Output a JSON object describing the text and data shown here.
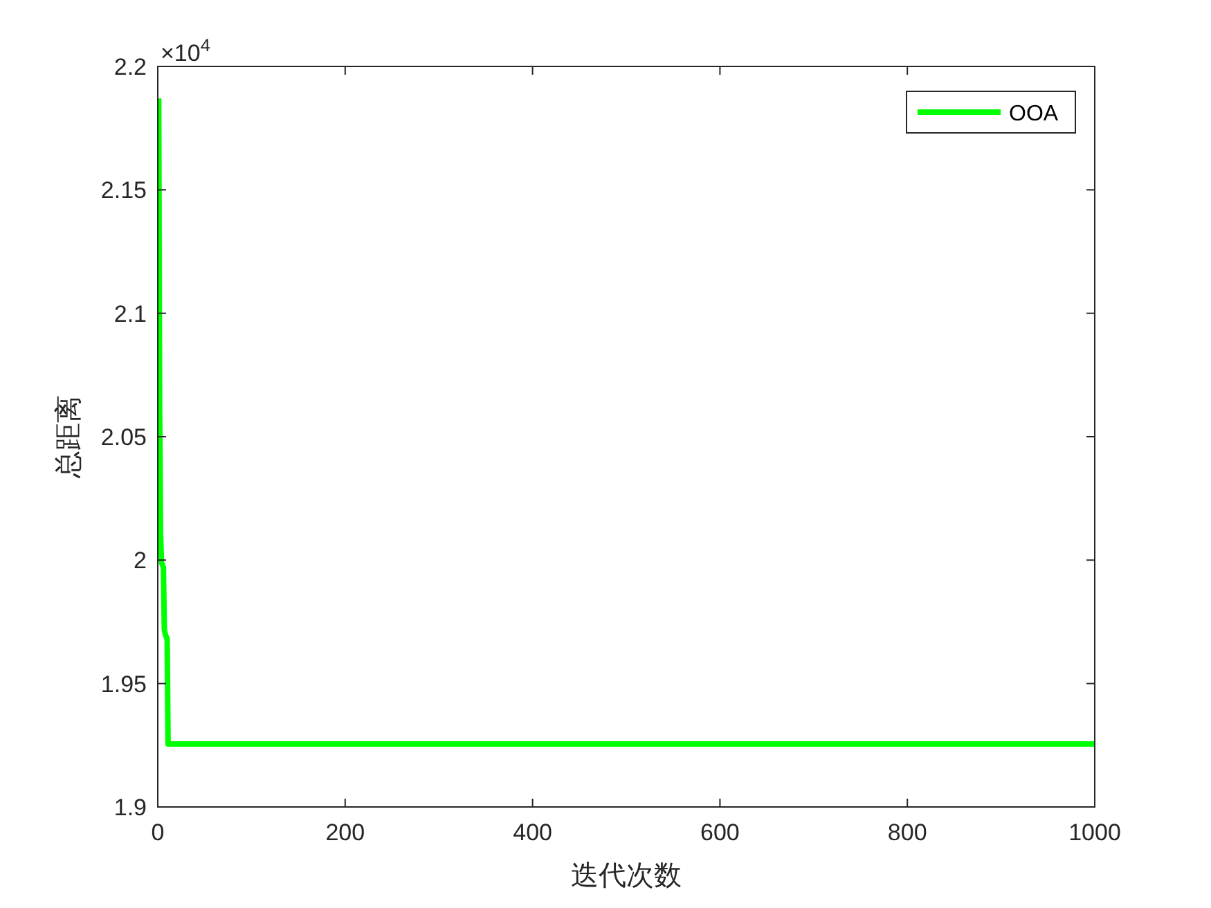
{
  "chart_data": {
    "type": "line",
    "xlabel": "迭代次数",
    "ylabel": "总距离",
    "annotations": [
      "×10$^{4}$"
    ],
    "x": [
      1,
      2,
      3,
      4,
      6,
      7,
      8,
      10,
      11,
      1000
    ],
    "series": [
      {
        "name": "OOA",
        "color": "#00ff00",
        "values": [
          2.187,
          2.06,
          2.01,
          1.999,
          1.997,
          1.972,
          1.97,
          1.968,
          1.9255,
          1.9255
        ]
      }
    ],
    "xlim": [
      0,
      1000
    ],
    "xticks": [
      0,
      200,
      400,
      600,
      800,
      1000
    ],
    "ylim": [
      1.9,
      2.2
    ],
    "yticks": [
      1.9,
      1.95,
      2,
      2.05,
      2.1,
      2.15,
      2.2
    ],
    "grid": false,
    "legend": "top right",
    "marker": "none",
    "line_style": "solid"
  }
}
